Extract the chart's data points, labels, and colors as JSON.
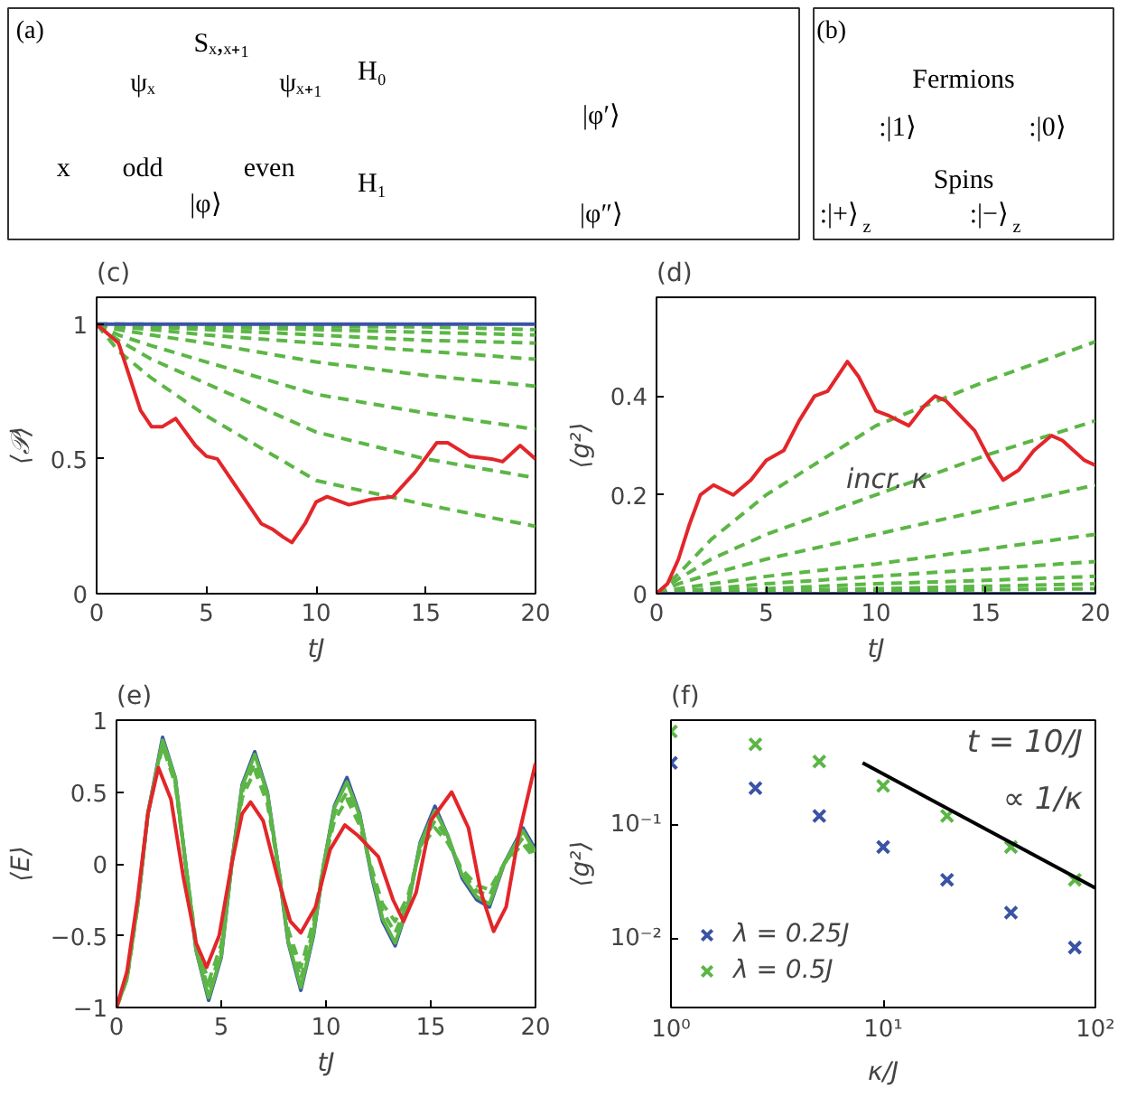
{
  "chart_data": [
    {
      "type": "other",
      "title": "(a)",
      "annotations": [
        "Sₓ,ₓ₊₁",
        "ψₓ",
        "ψₓ₊₁",
        "x",
        "odd",
        "even",
        "|φ⟩",
        "H₀",
        "H₁",
        "|φ′⟩",
        "|φ″⟩"
      ]
    },
    {
      "type": "other",
      "title": "(b)",
      "annotations": [
        "Fermions",
        ":|1⟩",
        ":|0⟩",
        "Spins",
        ":|+⟩$_{z}$",
        ":|−⟩$_{z}$"
      ]
    },
    {
      "type": "line",
      "title": "(c)",
      "xlabel": "tJ",
      "ylabel": "⟨𝒫⟩",
      "xlim": [
        0,
        20
      ],
      "ylim": [
        0,
        1.1
      ],
      "xticks": [
        0,
        5,
        10,
        15,
        20
      ],
      "yticks": [
        0,
        0.5,
        1
      ],
      "grid": false,
      "series": [
        {
          "color": "#5cb646",
          "line_style": "dashed",
          "x": [
            0,
            1,
            2.5,
            5,
            10,
            15,
            20
          ],
          "values": [
            1,
            0.9,
            0.8,
            0.66,
            0.42,
            0.33,
            0.25
          ]
        },
        {
          "color": "#5cb646",
          "line_style": "dashed",
          "x": [
            0,
            1,
            2.5,
            5,
            10,
            15,
            20
          ],
          "values": [
            1,
            0.94,
            0.87,
            0.78,
            0.6,
            0.5,
            0.43
          ]
        },
        {
          "color": "#5cb646",
          "line_style": "dashed",
          "x": [
            0,
            1,
            2.5,
            5,
            10,
            15,
            20
          ],
          "values": [
            1,
            0.96,
            0.92,
            0.86,
            0.74,
            0.67,
            0.61
          ]
        },
        {
          "color": "#5cb646",
          "line_style": "dashed",
          "x": [
            0,
            1,
            2.5,
            5,
            10,
            15,
            20
          ],
          "values": [
            1,
            0.98,
            0.96,
            0.93,
            0.86,
            0.81,
            0.77
          ]
        },
        {
          "color": "#5cb646",
          "line_style": "dashed",
          "x": [
            0,
            1,
            2.5,
            5,
            10,
            15,
            20
          ],
          "values": [
            1,
            0.99,
            0.98,
            0.96,
            0.93,
            0.9,
            0.87
          ]
        },
        {
          "color": "#5cb646",
          "line_style": "dashed",
          "x": [
            0,
            1,
            2.5,
            5,
            10,
            15,
            20
          ],
          "values": [
            1,
            0.99,
            0.99,
            0.98,
            0.96,
            0.94,
            0.93
          ]
        },
        {
          "color": "#5cb646",
          "line_style": "dashed",
          "x": [
            0,
            1,
            2.5,
            5,
            10,
            15,
            20
          ],
          "values": [
            1,
            1,
            0.99,
            0.99,
            0.98,
            0.97,
            0.96
          ]
        },
        {
          "color": "#5cb646",
          "line_style": "dashed",
          "x": [
            0,
            1,
            2.5,
            5,
            10,
            15,
            20
          ],
          "values": [
            1,
            1,
            1,
            0.99,
            0.99,
            0.99,
            0.98
          ]
        },
        {
          "color": "#3a53a4",
          "line_style": "solid",
          "x": [
            0,
            20
          ],
          "values": [
            1,
            1
          ]
        },
        {
          "color": "#e3262a",
          "line_style": "solid",
          "x": [
            0,
            1,
            2,
            2.5,
            3,
            3.6,
            4.5,
            5,
            5.5,
            6.5,
            7.5,
            8,
            8.5,
            8.9,
            9.5,
            10,
            10.5,
            11.5,
            12.5,
            13.5,
            14.5,
            15.5,
            16,
            17,
            18,
            18.5,
            19.3,
            20
          ],
          "values": [
            1,
            0.93,
            0.68,
            0.62,
            0.62,
            0.65,
            0.55,
            0.51,
            0.5,
            0.38,
            0.26,
            0.24,
            0.21,
            0.19,
            0.26,
            0.34,
            0.36,
            0.33,
            0.35,
            0.36,
            0.45,
            0.56,
            0.56,
            0.51,
            0.5,
            0.49,
            0.55,
            0.5
          ]
        }
      ]
    },
    {
      "type": "line",
      "title": "(d)",
      "xlabel": "tJ",
      "ylabel": "⟨g²⟩",
      "xlim": [
        0,
        20
      ],
      "ylim": [
        0,
        0.6
      ],
      "xticks": [
        0,
        5,
        10,
        15,
        20
      ],
      "yticks": [
        0,
        0.2,
        0.4
      ],
      "grid": false,
      "annotations": [
        {
          "text": "incr. κ",
          "x": 10.5,
          "y": 0.2
        }
      ],
      "series": [
        {
          "color": "#5cb646",
          "line_style": "dashed",
          "x": [
            0,
            1,
            2.5,
            5,
            10,
            15,
            20
          ],
          "values": [
            0,
            0.04,
            0.11,
            0.2,
            0.34,
            0.43,
            0.51
          ]
        },
        {
          "color": "#5cb646",
          "line_style": "dashed",
          "x": [
            0,
            1,
            2.5,
            5,
            10,
            15,
            20
          ],
          "values": [
            0,
            0.03,
            0.07,
            0.12,
            0.2,
            0.28,
            0.35
          ]
        },
        {
          "color": "#5cb646",
          "line_style": "dashed",
          "x": [
            0,
            1,
            2.5,
            5,
            10,
            15,
            20
          ],
          "values": [
            0,
            0.02,
            0.04,
            0.07,
            0.12,
            0.17,
            0.22
          ]
        },
        {
          "color": "#5cb646",
          "line_style": "dashed",
          "x": [
            0,
            1,
            2.5,
            5,
            10,
            15,
            20
          ],
          "values": [
            0,
            0.01,
            0.02,
            0.035,
            0.06,
            0.09,
            0.12
          ]
        },
        {
          "color": "#5cb646",
          "line_style": "dashed",
          "x": [
            0,
            1,
            2.5,
            5,
            10,
            15,
            20
          ],
          "values": [
            0,
            0.005,
            0.01,
            0.02,
            0.035,
            0.05,
            0.065
          ]
        },
        {
          "color": "#5cb646",
          "line_style": "dashed",
          "x": [
            0,
            1,
            2.5,
            5,
            10,
            15,
            20
          ],
          "values": [
            0,
            0.003,
            0.006,
            0.01,
            0.02,
            0.027,
            0.035
          ]
        },
        {
          "color": "#5cb646",
          "line_style": "dashed",
          "x": [
            0,
            1,
            2.5,
            5,
            10,
            15,
            20
          ],
          "values": [
            0,
            0.002,
            0.003,
            0.006,
            0.01,
            0.015,
            0.02
          ]
        },
        {
          "color": "#5cb646",
          "line_style": "dashed",
          "x": [
            0,
            1,
            2.5,
            5,
            10,
            15,
            20
          ],
          "values": [
            0,
            0.001,
            0.002,
            0.003,
            0.005,
            0.008,
            0.01
          ]
        },
        {
          "color": "#3a53a4",
          "line_style": "solid",
          "x": [
            0,
            20
          ],
          "values": [
            0,
            0
          ]
        },
        {
          "color": "#e3262a",
          "line_style": "solid",
          "x": [
            0,
            0.5,
            1,
            1.5,
            2,
            2.6,
            3.5,
            4.3,
            5,
            5.8,
            6.5,
            7.2,
            7.8,
            8.7,
            9.2,
            10,
            10.6,
            11.5,
            12.2,
            12.7,
            13.2,
            14.5,
            15.2,
            15.8,
            16.5,
            17.2,
            18,
            18.5,
            19.5,
            20
          ],
          "values": [
            0,
            0.02,
            0.07,
            0.14,
            0.2,
            0.22,
            0.2,
            0.23,
            0.27,
            0.29,
            0.35,
            0.4,
            0.41,
            0.47,
            0.44,
            0.37,
            0.36,
            0.34,
            0.38,
            0.4,
            0.39,
            0.33,
            0.27,
            0.23,
            0.25,
            0.29,
            0.32,
            0.31,
            0.27,
            0.26
          ]
        }
      ]
    },
    {
      "type": "line",
      "title": "(e)",
      "xlabel": "tJ",
      "ylabel": "⟨E⟩",
      "xlim": [
        0,
        20
      ],
      "ylim": [
        -1,
        1
      ],
      "xticks": [
        0,
        5,
        10,
        15,
        20
      ],
      "yticks": [
        -1,
        -0.5,
        0,
        0.5,
        1
      ],
      "grid": false,
      "series": [
        {
          "color": "#3a53a4",
          "line_style": "solid",
          "x": [
            1,
            1.5,
            2.2,
            2.8,
            3.3,
            3.8,
            4.4,
            5,
            5.5,
            6,
            6.6,
            7.2,
            7.7,
            8.2,
            8.8,
            9.4,
            9.9,
            10.4,
            11,
            11.6,
            12.2,
            12.7,
            13.3,
            13.9,
            14.5,
            15.2,
            15.8,
            16.5,
            17.2,
            17.8,
            18.5,
            19.4,
            20
          ],
          "values": [
            -0.3,
            0.35,
            0.88,
            0.6,
            0,
            -0.6,
            -0.95,
            -0.65,
            0,
            0.55,
            0.78,
            0.5,
            0,
            -0.55,
            -0.88,
            -0.5,
            0,
            0.4,
            0.6,
            0.35,
            -0.1,
            -0.4,
            -0.57,
            -0.3,
            0.15,
            0.4,
            0.2,
            -0.1,
            -0.25,
            -0.3,
            0,
            0.25,
            0.1
          ]
        },
        {
          "color": "#5cb646",
          "line_style": "solid",
          "x": [
            0,
            0.5,
            1,
            1.5,
            2.2,
            2.8,
            3.3,
            3.8,
            4.4,
            5,
            5.5,
            6,
            6.6,
            7.2,
            7.7,
            8.2,
            8.8,
            9.4,
            9.9,
            10.4,
            11,
            11.6,
            12.2,
            12.7,
            13.3,
            13.9,
            14.5,
            15.2,
            15.8,
            16.5,
            17.2,
            17.8,
            18.5,
            19.4,
            20
          ],
          "values": [
            -1,
            -0.8,
            -0.3,
            0.35,
            0.86,
            0.6,
            0,
            -0.6,
            -0.93,
            -0.64,
            0,
            0.54,
            0.76,
            0.49,
            0,
            -0.54,
            -0.86,
            -0.49,
            0,
            0.39,
            0.57,
            0.34,
            -0.08,
            -0.38,
            -0.55,
            -0.3,
            0.14,
            0.37,
            0.2,
            -0.08,
            -0.23,
            -0.28,
            0,
            0.23,
            0.08
          ]
        },
        {
          "color": "#5cb646",
          "line_style": "dashed",
          "x": [
            0,
            0.5,
            1,
            1.5,
            2.2,
            2.8,
            3.3,
            3.8,
            4.4,
            5,
            5.5,
            6,
            6.6,
            7.2,
            7.7,
            8.2,
            8.8,
            9.4,
            9.9,
            10.4,
            11,
            11.6,
            12.2,
            12.7,
            13.3,
            13.9,
            14.5,
            15.2,
            15.8,
            16.5,
            17.2,
            17.8,
            18.5,
            19.4,
            20
          ],
          "values": [
            -1,
            -0.8,
            -0.3,
            0.35,
            0.84,
            0.58,
            0,
            -0.58,
            -0.88,
            -0.6,
            0,
            0.5,
            0.7,
            0.45,
            0,
            -0.5,
            -0.8,
            -0.45,
            0,
            0.35,
            0.5,
            0.3,
            -0.06,
            -0.33,
            -0.48,
            -0.27,
            0.12,
            0.3,
            0.18,
            -0.06,
            -0.19,
            -0.22,
            0,
            0.18,
            0.05
          ]
        },
        {
          "color": "#5cb646",
          "line_style": "dashed",
          "x": [
            0,
            0.5,
            1,
            1.5,
            2.2,
            2.8,
            3.3,
            3.8,
            4.4,
            5,
            5.5,
            6,
            6.6,
            7.2,
            7.7,
            8.2,
            8.8,
            9.4,
            9.9,
            10.4,
            11,
            11.6,
            12.2,
            12.7,
            13.3,
            13.9,
            14.5,
            15.2,
            15.8,
            16.5,
            17.2,
            17.8,
            18.5,
            19.4,
            20
          ],
          "values": [
            -1,
            -0.8,
            -0.3,
            0.35,
            0.82,
            0.56,
            0,
            -0.55,
            -0.82,
            -0.56,
            0,
            0.46,
            0.65,
            0.42,
            0,
            -0.46,
            -0.72,
            -0.4,
            0,
            0.3,
            0.45,
            0.27,
            -0.04,
            -0.28,
            -0.4,
            -0.23,
            0.1,
            0.25,
            0.15,
            -0.04,
            -0.15,
            -0.18,
            0,
            0.14,
            0.03
          ]
        },
        {
          "color": "#e3262a",
          "line_style": "solid",
          "x": [
            0,
            0.5,
            1,
            1.5,
            2,
            2.6,
            3.2,
            3.8,
            4.3,
            4.9,
            5.5,
            6,
            6.4,
            7,
            7.7,
            8.3,
            8.8,
            9.5,
            10.2,
            10.9,
            11.5,
            12.5,
            13.2,
            13.7,
            14.3,
            15,
            16,
            16.8,
            17.4,
            18,
            18.6,
            19.2,
            20
          ],
          "values": [
            -1,
            -0.75,
            -0.25,
            0.35,
            0.67,
            0.45,
            -0.1,
            -0.55,
            -0.72,
            -0.5,
            0,
            0.35,
            0.43,
            0.3,
            -0.1,
            -0.4,
            -0.48,
            -0.3,
            0.1,
            0.27,
            0.2,
            0.05,
            -0.25,
            -0.4,
            -0.2,
            0.3,
            0.5,
            0.25,
            -0.2,
            -0.47,
            -0.3,
            0.2,
            0.7
          ]
        }
      ]
    },
    {
      "type": "scatter",
      "title": "(f)",
      "xlabel": "κ/J",
      "ylabel": "⟨g²⟩",
      "log": "xy",
      "xlim": [
        1,
        100
      ],
      "ylim": [
        0.0025,
        0.83
      ],
      "xticks": [
        {
          "value": 1,
          "label": "10⁰"
        },
        {
          "value": 10,
          "label": "10¹"
        },
        {
          "value": 100,
          "label": "10²"
        }
      ],
      "yticks": [
        {
          "value": 0.01,
          "label": "10⁻²"
        },
        {
          "value": 0.1,
          "label": "10⁻¹"
        }
      ],
      "grid": false,
      "legend": "bottom left",
      "marker": "cross",
      "annotations": [
        "t = 10/J",
        "∝ 1/κ"
      ],
      "x": [
        1,
        2.5,
        5,
        10,
        20,
        40,
        80
      ],
      "series": [
        {
          "name": "λ = 0.25J",
          "color": "#3a53a4",
          "values": [
            0.35,
            0.21,
            0.12,
            0.064,
            0.033,
            0.017,
            0.0084
          ]
        },
        {
          "name": "λ = 0.5J",
          "color": "#5cb646",
          "values": [
            0.66,
            0.51,
            0.36,
            0.22,
            0.12,
            0.064,
            0.033
          ]
        },
        {
          "type": "line",
          "marker": "none",
          "color": "#000000",
          "line_style": "solid",
          "x": [
            8,
            100
          ],
          "values": [
            0.35,
            0.028
          ]
        }
      ]
    }
  ]
}
